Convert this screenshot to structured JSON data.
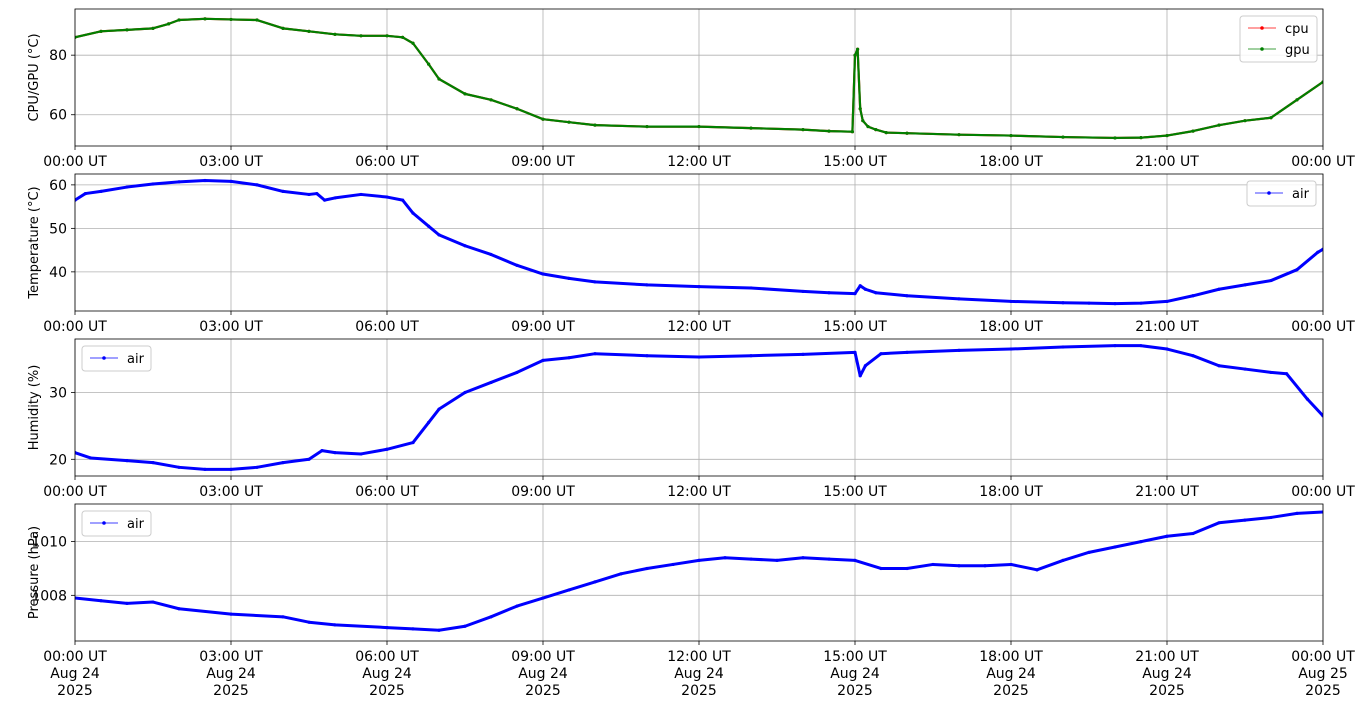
{
  "chart_data": [
    {
      "type": "line",
      "ylabel": "CPU/GPU (°C)",
      "xlim": [
        "00:00",
        "24:00"
      ],
      "ylim": [
        49.5,
        95.5
      ],
      "yticks": [
        60,
        80
      ],
      "xticks": [
        "00:00 UT",
        "03:00 UT",
        "06:00 UT",
        "09:00 UT",
        "12:00 UT",
        "15:00 UT",
        "18:00 UT",
        "21:00 UT",
        "00:00 UT"
      ],
      "grid": true,
      "legend": "top-right",
      "series": [
        {
          "name": "cpu",
          "color": "#ff0000",
          "x": [
            0,
            0.5,
            1,
            1.5,
            1.8,
            2,
            2.5,
            3,
            3.5,
            4,
            4.5,
            5,
            5.5,
            6,
            6.3,
            6.5,
            6.8,
            7,
            7.5,
            8,
            8.5,
            9,
            9.5,
            10,
            11,
            12,
            13,
            14,
            14.5,
            14.95,
            15.0,
            15.05,
            15.1,
            15.15,
            15.25,
            15.4,
            15.6,
            16,
            17,
            18,
            19,
            20,
            20.5,
            21,
            21.5,
            22,
            22.5,
            23,
            23.5,
            24
          ],
          "y": [
            86,
            88,
            88.5,
            89,
            90.5,
            91.8,
            92.2,
            92,
            91.8,
            89,
            88,
            87,
            86.5,
            86.5,
            86,
            84,
            77,
            72,
            67,
            65,
            62,
            58.5,
            57.5,
            56.5,
            56,
            56,
            55.5,
            55,
            54.5,
            54.3,
            80,
            82,
            62,
            58,
            56,
            55,
            54,
            53.8,
            53.3,
            53,
            52.5,
            52.2,
            52.3,
            53,
            54.5,
            56.5,
            58,
            59,
            65,
            71
          ]
        },
        {
          "name": "gpu",
          "color": "#008000",
          "x": [
            0,
            0.5,
            1,
            1.5,
            1.8,
            2,
            2.5,
            3,
            3.5,
            4,
            4.5,
            5,
            5.5,
            6,
            6.3,
            6.5,
            6.8,
            7,
            7.5,
            8,
            8.5,
            9,
            9.5,
            10,
            11,
            12,
            13,
            14,
            14.5,
            14.95,
            15.0,
            15.05,
            15.1,
            15.15,
            15.25,
            15.4,
            15.6,
            16,
            17,
            18,
            19,
            20,
            20.5,
            21,
            21.5,
            22,
            22.5,
            23,
            23.5,
            24
          ],
          "y": [
            86,
            88,
            88.5,
            89,
            90.5,
            91.8,
            92.2,
            92,
            91.8,
            89,
            88,
            87,
            86.5,
            86.5,
            86,
            84,
            77,
            72,
            67,
            65,
            62,
            58.5,
            57.5,
            56.5,
            56,
            56,
            55.5,
            55,
            54.5,
            54.3,
            80,
            82,
            62,
            58,
            56,
            55,
            54,
            53.8,
            53.3,
            53,
            52.5,
            52.2,
            52.3,
            53,
            54.5,
            56.5,
            58,
            59,
            65,
            71
          ]
        }
      ]
    },
    {
      "type": "line",
      "ylabel": "Temperature (°C)",
      "xlim": [
        "00:00",
        "24:00"
      ],
      "ylim": [
        31,
        62.5
      ],
      "yticks": [
        40,
        50,
        60
      ],
      "xticks": [
        "00:00 UT",
        "03:00 UT",
        "06:00 UT",
        "09:00 UT",
        "12:00 UT",
        "15:00 UT",
        "18:00 UT",
        "21:00 UT",
        "00:00 UT"
      ],
      "grid": true,
      "legend": "top-right",
      "series": [
        {
          "name": "air",
          "color": "#0000ff",
          "x": [
            0,
            0.2,
            0.5,
            1,
            1.5,
            2,
            2.5,
            3,
            3.5,
            4,
            4.5,
            4.65,
            4.8,
            5,
            5.5,
            6,
            6.3,
            6.5,
            6.8,
            7,
            7.5,
            8,
            8.5,
            9,
            9.5,
            10,
            11,
            12,
            13,
            14,
            14.5,
            15.0,
            15.1,
            15.2,
            15.4,
            16,
            17,
            18,
            19,
            19.5,
            20,
            20.5,
            21,
            21.5,
            22,
            22.5,
            23,
            23.5,
            23.9,
            24
          ],
          "y": [
            56.5,
            58,
            58.5,
            59.5,
            60.2,
            60.7,
            61,
            60.8,
            60,
            58.5,
            57.8,
            58,
            56.5,
            57,
            57.8,
            57.2,
            56.5,
            53.5,
            50.5,
            48.5,
            46,
            44,
            41.5,
            39.5,
            38.5,
            37.7,
            37,
            36.6,
            36.3,
            35.5,
            35.2,
            35,
            36.8,
            36,
            35.2,
            34.5,
            33.8,
            33.2,
            32.9,
            32.8,
            32.7,
            32.8,
            33.2,
            34.5,
            36,
            37,
            38,
            40.5,
            44.5,
            45.2
          ]
        }
      ]
    },
    {
      "type": "line",
      "ylabel": "Humidity (%)",
      "xlim": [
        "00:00",
        "24:00"
      ],
      "ylim": [
        17.5,
        38
      ],
      "yticks": [
        20,
        30
      ],
      "xticks": [
        "00:00 UT",
        "03:00 UT",
        "06:00 UT",
        "09:00 UT",
        "12:00 UT",
        "15:00 UT",
        "18:00 UT",
        "21:00 UT",
        "00:00 UT"
      ],
      "grid": true,
      "legend": "top-left",
      "series": [
        {
          "name": "air",
          "color": "#0000ff",
          "x": [
            0,
            0.3,
            1,
            1.5,
            2,
            2.5,
            3,
            3.5,
            4,
            4.5,
            4.75,
            5,
            5.5,
            6,
            6.5,
            6.8,
            7,
            7.5,
            8,
            8.5,
            9,
            9.5,
            10,
            11,
            12,
            13,
            14,
            15.0,
            15.1,
            15.2,
            15.5,
            16,
            17,
            18,
            19,
            20,
            20.5,
            21,
            21.5,
            22,
            22.5,
            23,
            23.3,
            23.7,
            24
          ],
          "y": [
            21,
            20.2,
            19.8,
            19.5,
            18.8,
            18.5,
            18.5,
            18.8,
            19.5,
            20,
            21.3,
            21,
            20.8,
            21.5,
            22.5,
            25.5,
            27.5,
            30,
            31.5,
            33,
            34.8,
            35.2,
            35.8,
            35.5,
            35.3,
            35.5,
            35.7,
            36,
            32.5,
            34,
            35.8,
            36,
            36.3,
            36.5,
            36.8,
            37,
            37,
            36.5,
            35.5,
            34,
            33.5,
            33,
            32.8,
            29,
            26.5
          ]
        }
      ]
    },
    {
      "type": "line",
      "ylabel": "Pressure (hPa)",
      "xlim": [
        "00:00",
        "24:00"
      ],
      "ylim": [
        1006.3,
        1011.4
      ],
      "yticks": [
        1008,
        1010
      ],
      "xticks": [
        "00:00 UT\nAug 24\n2025",
        "03:00 UT\nAug 24\n2025",
        "06:00 UT\nAug 24\n2025",
        "09:00 UT\nAug 24\n2025",
        "12:00 UT\nAug 24\n2025",
        "15:00 UT\nAug 24\n2025",
        "18:00 UT\nAug 24\n2025",
        "21:00 UT\nAug 24\n2025",
        "00:00 UT\nAug 25\n2025"
      ],
      "grid": true,
      "legend": "top-left",
      "series": [
        {
          "name": "air",
          "color": "#0000ff",
          "x": [
            0,
            0.5,
            1,
            1.5,
            2,
            3,
            4,
            4.5,
            5,
            6,
            6.5,
            7,
            7.5,
            8,
            8.5,
            9,
            9.5,
            10,
            10.5,
            11,
            11.5,
            12,
            12.5,
            13,
            13.5,
            14,
            14.5,
            15,
            15.5,
            16,
            16.5,
            17,
            17.5,
            18,
            18.5,
            19,
            19.5,
            20,
            20.5,
            21,
            21.5,
            22,
            22.5,
            23,
            23.5,
            24
          ],
          "y": [
            1007.9,
            1007.8,
            1007.7,
            1007.75,
            1007.5,
            1007.3,
            1007.2,
            1007.0,
            1006.9,
            1006.8,
            1006.75,
            1006.7,
            1006.85,
            1007.2,
            1007.6,
            1007.9,
            1008.2,
            1008.5,
            1008.8,
            1009.0,
            1009.15,
            1009.3,
            1009.4,
            1009.35,
            1009.3,
            1009.4,
            1009.35,
            1009.3,
            1009.0,
            1009.0,
            1009.15,
            1009.1,
            1009.1,
            1009.15,
            1008.95,
            1009.3,
            1009.6,
            1009.8,
            1010.0,
            1010.2,
            1010.3,
            1010.7,
            1010.8,
            1010.9,
            1011.05,
            1011.1
          ]
        }
      ]
    }
  ]
}
